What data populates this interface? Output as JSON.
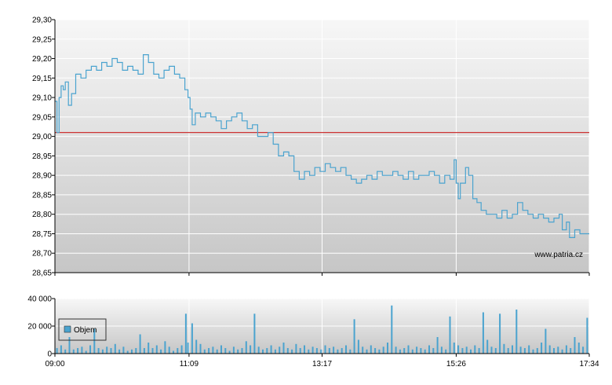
{
  "colors": {
    "price_line": "#4aa3cf",
    "reference_line": "#cc3333",
    "volume_bar": "#4aa3cf",
    "grid": "#ffffff",
    "plot_bg_top": "#f7f7f7",
    "plot_bg_bottom": "#c6c6c6"
  },
  "watermark": "www.patria.cz",
  "chart_data": [
    {
      "type": "line",
      "name": "price",
      "xlabel": "",
      "ylabel": "",
      "ylim": [
        28.65,
        29.3
      ],
      "yticks": [
        "29,30",
        "29,25",
        "29,20",
        "29,15",
        "29,10",
        "29,05",
        "29,00",
        "28,95",
        "28,90",
        "28,85",
        "28,80",
        "28,75",
        "28,70",
        "28,65"
      ],
      "ytick_values": [
        29.3,
        29.25,
        29.2,
        29.15,
        29.1,
        29.05,
        29.0,
        28.95,
        28.9,
        28.85,
        28.8,
        28.75,
        28.7,
        28.65
      ],
      "xlim": [
        "09:00",
        "17:34"
      ],
      "grid": true,
      "reference_line": 29.01,
      "points": [
        [
          "09:00",
          29.09
        ],
        [
          "09:02",
          29.01
        ],
        [
          "09:04",
          29.1
        ],
        [
          "09:06",
          29.13
        ],
        [
          "09:08",
          29.12
        ],
        [
          "09:10",
          29.14
        ],
        [
          "09:13",
          29.08
        ],
        [
          "09:16",
          29.11
        ],
        [
          "09:20",
          29.16
        ],
        [
          "09:25",
          29.15
        ],
        [
          "09:30",
          29.17
        ],
        [
          "09:35",
          29.18
        ],
        [
          "09:40",
          29.17
        ],
        [
          "09:45",
          29.19
        ],
        [
          "09:50",
          29.18
        ],
        [
          "09:55",
          29.2
        ],
        [
          "10:00",
          29.19
        ],
        [
          "10:05",
          29.17
        ],
        [
          "10:10",
          29.18
        ],
        [
          "10:15",
          29.17
        ],
        [
          "10:20",
          29.16
        ],
        [
          "10:25",
          29.21
        ],
        [
          "10:30",
          29.19
        ],
        [
          "10:35",
          29.16
        ],
        [
          "10:40",
          29.15
        ],
        [
          "10:45",
          29.17
        ],
        [
          "10:50",
          29.18
        ],
        [
          "10:55",
          29.16
        ],
        [
          "11:00",
          29.15
        ],
        [
          "11:05",
          29.12
        ],
        [
          "11:08",
          29.1
        ],
        [
          "11:10",
          29.07
        ],
        [
          "11:12",
          29.03
        ],
        [
          "11:15",
          29.06
        ],
        [
          "11:20",
          29.05
        ],
        [
          "11:25",
          29.06
        ],
        [
          "11:30",
          29.05
        ],
        [
          "11:35",
          29.04
        ],
        [
          "11:40",
          29.02
        ],
        [
          "11:45",
          29.04
        ],
        [
          "11:50",
          29.05
        ],
        [
          "11:55",
          29.06
        ],
        [
          "12:00",
          29.04
        ],
        [
          "12:05",
          29.02
        ],
        [
          "12:10",
          29.03
        ],
        [
          "12:15",
          29.0
        ],
        [
          "12:20",
          29.0
        ],
        [
          "12:25",
          29.01
        ],
        [
          "12:30",
          28.98
        ],
        [
          "12:35",
          28.95
        ],
        [
          "12:40",
          28.96
        ],
        [
          "12:45",
          28.95
        ],
        [
          "12:50",
          28.91
        ],
        [
          "12:55",
          28.89
        ],
        [
          "13:00",
          28.91
        ],
        [
          "13:05",
          28.9
        ],
        [
          "13:10",
          28.92
        ],
        [
          "13:15",
          28.91
        ],
        [
          "13:20",
          28.93
        ],
        [
          "13:25",
          28.92
        ],
        [
          "13:30",
          28.91
        ],
        [
          "13:35",
          28.92
        ],
        [
          "13:40",
          28.9
        ],
        [
          "13:45",
          28.89
        ],
        [
          "13:50",
          28.88
        ],
        [
          "13:55",
          28.89
        ],
        [
          "14:00",
          28.9
        ],
        [
          "14:05",
          28.89
        ],
        [
          "14:10",
          28.91
        ],
        [
          "14:15",
          28.9
        ],
        [
          "14:20",
          28.9
        ],
        [
          "14:25",
          28.91
        ],
        [
          "14:30",
          28.9
        ],
        [
          "14:35",
          28.89
        ],
        [
          "14:40",
          28.91
        ],
        [
          "14:45",
          28.89
        ],
        [
          "14:50",
          28.9
        ],
        [
          "15:00",
          28.91
        ],
        [
          "15:05",
          28.9
        ],
        [
          "15:10",
          28.88
        ],
        [
          "15:15",
          28.9
        ],
        [
          "15:20",
          28.89
        ],
        [
          "15:24",
          28.94
        ],
        [
          "15:26",
          28.88
        ],
        [
          "15:28",
          28.84
        ],
        [
          "15:30",
          28.88
        ],
        [
          "15:35",
          28.92
        ],
        [
          "15:38",
          28.9
        ],
        [
          "15:42",
          28.84
        ],
        [
          "15:46",
          28.83
        ],
        [
          "15:50",
          28.81
        ],
        [
          "15:55",
          28.8
        ],
        [
          "16:00",
          28.8
        ],
        [
          "16:05",
          28.79
        ],
        [
          "16:10",
          28.81
        ],
        [
          "16:15",
          28.79
        ],
        [
          "16:20",
          28.8
        ],
        [
          "16:25",
          28.83
        ],
        [
          "16:30",
          28.81
        ],
        [
          "16:35",
          28.8
        ],
        [
          "16:40",
          28.79
        ],
        [
          "16:45",
          28.8
        ],
        [
          "16:50",
          28.79
        ],
        [
          "16:55",
          28.78
        ],
        [
          "17:00",
          28.79
        ],
        [
          "17:05",
          28.8
        ],
        [
          "17:08",
          28.76
        ],
        [
          "17:12",
          28.78
        ],
        [
          "17:15",
          28.74
        ],
        [
          "17:20",
          28.76
        ],
        [
          "17:25",
          28.75
        ],
        [
          "17:34",
          28.75
        ]
      ]
    },
    {
      "type": "bar",
      "name": "volume",
      "legend": "Objem",
      "legend_placement": "top-left",
      "ylim": [
        0,
        40000
      ],
      "yticks": [
        "40 000",
        "20 000",
        "0"
      ],
      "ytick_values": [
        40000,
        20000,
        0
      ],
      "xticks": [
        "09:00",
        "11:09",
        "13:17",
        "15:26",
        "17:34"
      ],
      "xlim": [
        "09:00",
        "17:34"
      ],
      "grid": true,
      "bars": [
        [
          "09:02",
          4000
        ],
        [
          "09:06",
          6000
        ],
        [
          "09:10",
          3000
        ],
        [
          "09:14",
          12000
        ],
        [
          "09:18",
          3000
        ],
        [
          "09:22",
          4000
        ],
        [
          "09:26",
          5000
        ],
        [
          "09:30",
          2000
        ],
        [
          "09:34",
          6000
        ],
        [
          "09:38",
          18000
        ],
        [
          "09:42",
          4000
        ],
        [
          "09:46",
          3000
        ],
        [
          "09:50",
          5000
        ],
        [
          "09:54",
          4000
        ],
        [
          "09:58",
          7000
        ],
        [
          "10:02",
          3000
        ],
        [
          "10:06",
          5000
        ],
        [
          "10:10",
          2000
        ],
        [
          "10:14",
          3000
        ],
        [
          "10:18",
          4000
        ],
        [
          "10:22",
          14000
        ],
        [
          "10:26",
          4000
        ],
        [
          "10:30",
          8000
        ],
        [
          "10:34",
          4000
        ],
        [
          "10:38",
          6000
        ],
        [
          "10:42",
          3000
        ],
        [
          "10:46",
          9000
        ],
        [
          "10:50",
          5000
        ],
        [
          "10:54",
          2000
        ],
        [
          "10:58",
          4000
        ],
        [
          "11:02",
          6000
        ],
        [
          "11:06",
          29000
        ],
        [
          "11:08",
          8000
        ],
        [
          "11:12",
          22000
        ],
        [
          "11:16",
          10000
        ],
        [
          "11:20",
          7000
        ],
        [
          "11:24",
          3000
        ],
        [
          "11:28",
          4000
        ],
        [
          "11:32",
          5000
        ],
        [
          "11:36",
          3000
        ],
        [
          "11:40",
          6000
        ],
        [
          "11:44",
          4000
        ],
        [
          "11:48",
          2000
        ],
        [
          "11:52",
          5000
        ],
        [
          "11:56",
          3000
        ],
        [
          "12:00",
          4000
        ],
        [
          "12:04",
          9000
        ],
        [
          "12:08",
          6000
        ],
        [
          "12:12",
          29000
        ],
        [
          "12:16",
          5000
        ],
        [
          "12:20",
          3000
        ],
        [
          "12:24",
          4000
        ],
        [
          "12:28",
          6000
        ],
        [
          "12:32",
          3000
        ],
        [
          "12:36",
          5000
        ],
        [
          "12:40",
          8000
        ],
        [
          "12:44",
          4000
        ],
        [
          "12:48",
          3000
        ],
        [
          "12:52",
          7000
        ],
        [
          "12:56",
          4000
        ],
        [
          "13:00",
          6000
        ],
        [
          "13:04",
          3000
        ],
        [
          "13:08",
          5000
        ],
        [
          "13:12",
          4000
        ],
        [
          "13:16",
          3000
        ],
        [
          "13:20",
          6000
        ],
        [
          "13:24",
          4000
        ],
        [
          "13:28",
          5000
        ],
        [
          "13:32",
          3000
        ],
        [
          "13:36",
          4000
        ],
        [
          "13:40",
          6000
        ],
        [
          "13:44",
          3000
        ],
        [
          "13:48",
          25000
        ],
        [
          "13:52",
          10000
        ],
        [
          "13:56",
          5000
        ],
        [
          "14:00",
          3000
        ],
        [
          "14:04",
          6000
        ],
        [
          "14:08",
          4000
        ],
        [
          "14:12",
          3000
        ],
        [
          "14:16",
          5000
        ],
        [
          "14:20",
          8000
        ],
        [
          "14:24",
          35000
        ],
        [
          "14:28",
          5000
        ],
        [
          "14:32",
          3000
        ],
        [
          "14:36",
          4000
        ],
        [
          "14:40",
          6000
        ],
        [
          "14:44",
          3000
        ],
        [
          "14:48",
          5000
        ],
        [
          "14:52",
          4000
        ],
        [
          "14:56",
          3000
        ],
        [
          "15:00",
          6000
        ],
        [
          "15:04",
          4000
        ],
        [
          "15:08",
          12000
        ],
        [
          "15:12",
          5000
        ],
        [
          "15:16",
          3000
        ],
        [
          "15:20",
          27000
        ],
        [
          "15:24",
          8000
        ],
        [
          "15:28",
          6000
        ],
        [
          "15:32",
          4000
        ],
        [
          "15:36",
          5000
        ],
        [
          "15:40",
          3000
        ],
        [
          "15:44",
          6000
        ],
        [
          "15:48",
          4000
        ],
        [
          "15:52",
          30000
        ],
        [
          "15:56",
          10000
        ],
        [
          "16:00",
          5000
        ],
        [
          "16:04",
          4000
        ],
        [
          "16:08",
          29000
        ],
        [
          "16:12",
          7000
        ],
        [
          "16:16",
          4000
        ],
        [
          "16:20",
          6000
        ],
        [
          "16:24",
          32000
        ],
        [
          "16:28",
          5000
        ],
        [
          "16:32",
          4000
        ],
        [
          "16:36",
          6000
        ],
        [
          "16:40",
          3000
        ],
        [
          "16:44",
          4000
        ],
        [
          "16:48",
          8000
        ],
        [
          "16:52",
          18000
        ],
        [
          "16:56",
          6000
        ],
        [
          "17:00",
          4000
        ],
        [
          "17:04",
          5000
        ],
        [
          "17:08",
          3000
        ],
        [
          "17:12",
          6000
        ],
        [
          "17:16",
          4000
        ],
        [
          "17:20",
          12000
        ],
        [
          "17:24",
          8000
        ],
        [
          "17:28",
          5000
        ],
        [
          "17:32",
          26000
        ]
      ]
    }
  ]
}
